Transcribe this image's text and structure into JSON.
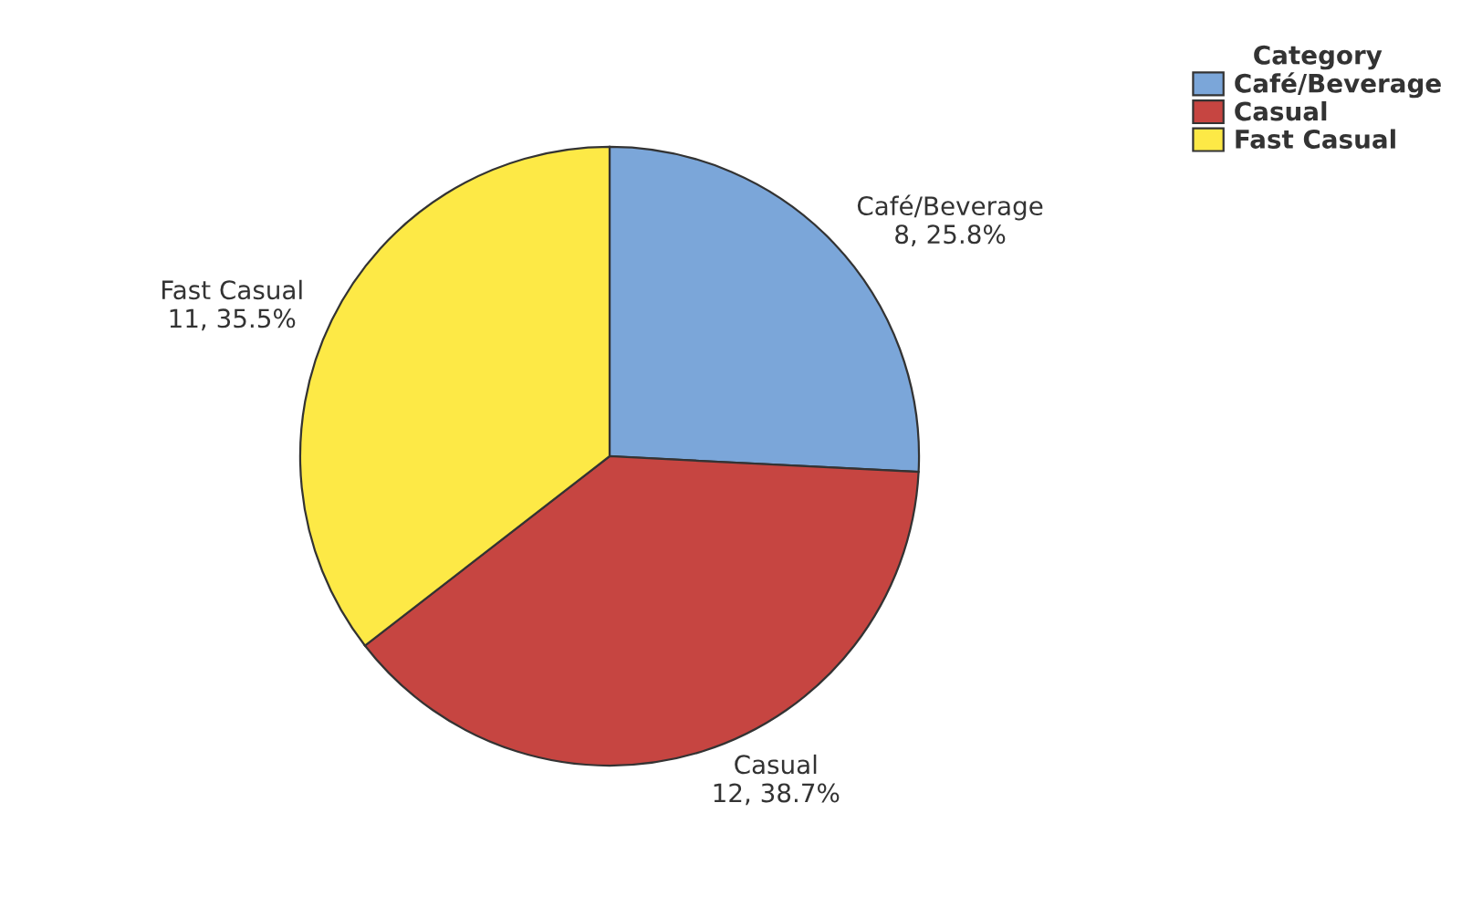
{
  "chart_data": {
    "type": "pie",
    "categories": [
      "Café/Beverage",
      "Casual",
      "Fast Casual"
    ],
    "values": [
      8,
      12,
      11
    ],
    "value_labels": [
      "8, 25.8%",
      "12, 38.7%",
      "11, 35.5%"
    ],
    "colors": [
      "#7ba6d9",
      "#c64541",
      "#fde946"
    ],
    "legend_title": "Category",
    "legend": "top right"
  }
}
